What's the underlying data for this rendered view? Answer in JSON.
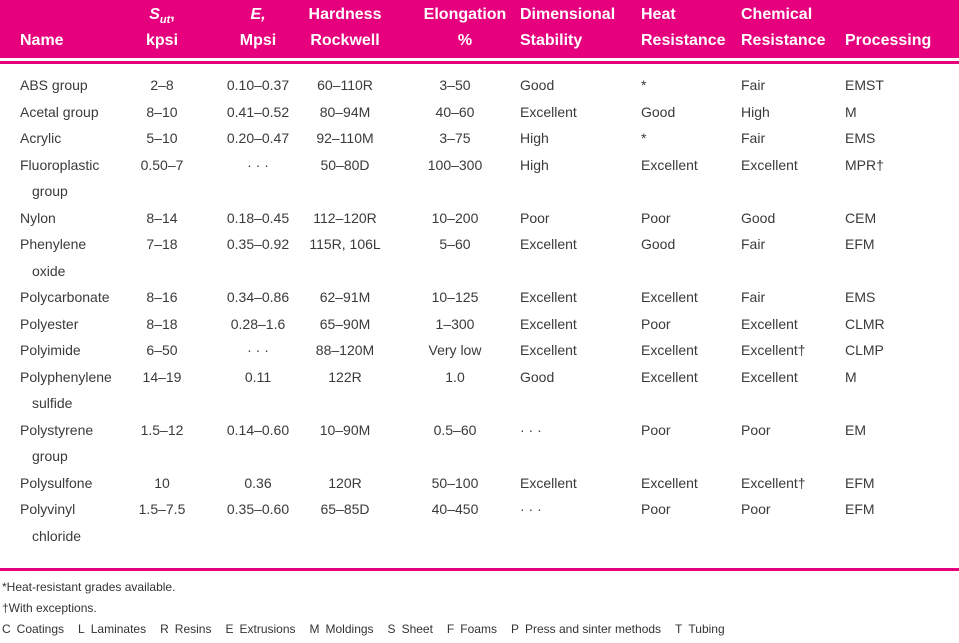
{
  "table": {
    "columns": [
      {
        "line1": "",
        "line2": "Name"
      },
      {
        "line1": "S",
        "line1_sub": "ut",
        "line1_end": ",",
        "line2": "kpsi"
      },
      {
        "line1": "E,",
        "line2": "Mpsi"
      },
      {
        "line1": "Hardness",
        "line2": "Rockwell"
      },
      {
        "line1": "Elongation",
        "line2": "%"
      },
      {
        "line1": "Dimensional",
        "line2": "Stability"
      },
      {
        "line1": "Heat",
        "line2": "Resistance"
      },
      {
        "line1": "Chemical",
        "line2": "Resistance"
      },
      {
        "line1": "",
        "line2": "Processing"
      }
    ],
    "rows": [
      {
        "name": [
          "ABS group"
        ],
        "cells": [
          "2–8",
          "0.10–0.37",
          "60–110R",
          "3–50",
          "Good",
          "*",
          "Fair",
          "EMST"
        ]
      },
      {
        "name": [
          "Acetal group"
        ],
        "cells": [
          "8–10",
          "0.41–0.52",
          "80–94M",
          "40–60",
          "Excellent",
          "Good",
          "High",
          "M"
        ]
      },
      {
        "name": [
          "Acrylic"
        ],
        "cells": [
          "5–10",
          "0.20–0.47",
          "92–110M",
          "3–75",
          "High",
          "*",
          "Fair",
          "EMS"
        ]
      },
      {
        "name": [
          "Fluoroplastic",
          "group"
        ],
        "cells": [
          "0.50–7",
          "· · ·",
          "50–80D",
          "100–300",
          "High",
          "Excellent",
          "Excellent",
          "MPR†"
        ]
      },
      {
        "name": [
          "Nylon"
        ],
        "cells": [
          "8–14",
          "0.18–0.45",
          "112–120R",
          "10–200",
          "Poor",
          "Poor",
          "Good",
          "CEM"
        ]
      },
      {
        "name": [
          "Phenylene",
          "oxide"
        ],
        "cells": [
          "7–18",
          "0.35–0.92",
          "115R, 106L",
          "5–60",
          "Excellent",
          "Good",
          "Fair",
          "EFM"
        ]
      },
      {
        "name": [
          "Polycarbonate"
        ],
        "cells": [
          "8–16",
          "0.34–0.86",
          "62–91M",
          "10–125",
          "Excellent",
          "Excellent",
          "Fair",
          "EMS"
        ]
      },
      {
        "name": [
          "Polyester"
        ],
        "cells": [
          "8–18",
          "0.28–1.6",
          "65–90M",
          "1–300",
          "Excellent",
          "Poor",
          "Excellent",
          "CLMR"
        ]
      },
      {
        "name": [
          "Polyimide"
        ],
        "cells": [
          "6–50",
          "· · ·",
          "88–120M",
          "Very low",
          "Excellent",
          "Excellent",
          "Excellent†",
          "CLMP"
        ]
      },
      {
        "name": [
          "Polyphenylene",
          "sulfide"
        ],
        "cells": [
          "14–19",
          "0.11",
          "122R",
          "1.0",
          "Good",
          "Excellent",
          "Excellent",
          "M"
        ]
      },
      {
        "name": [
          "Polystyrene",
          "group"
        ],
        "cells": [
          "1.5–12",
          "0.14–0.60",
          "10–90M",
          "0.5–60",
          "· · ·",
          "Poor",
          "Poor",
          "EM"
        ]
      },
      {
        "name": [
          "Polysulfone"
        ],
        "cells": [
          "10",
          "0.36",
          "120R",
          "50–100",
          "Excellent",
          "Excellent",
          "Excellent†",
          "EFM"
        ]
      },
      {
        "name": [
          "Polyvinyl",
          "chloride"
        ],
        "cells": [
          "1.5–7.5",
          "0.35–0.60",
          "65–85D",
          "40–450",
          "· · ·",
          "Poor",
          "Poor",
          "EFM"
        ]
      }
    ]
  },
  "footnotes": [
    "*Heat-resistant grades available.",
    "†With exceptions."
  ],
  "legend": [
    {
      "code": "C",
      "meaning": "Coatings"
    },
    {
      "code": "L",
      "meaning": "Laminates"
    },
    {
      "code": "R",
      "meaning": "Resins"
    },
    {
      "code": "E",
      "meaning": "Extrusions"
    },
    {
      "code": "M",
      "meaning": "Moldings"
    },
    {
      "code": "S",
      "meaning": "Sheet"
    },
    {
      "code": "F",
      "meaning": "Foams"
    },
    {
      "code": "P",
      "meaning": "Press and sinter methods"
    },
    {
      "code": "T",
      "meaning": "Tubing"
    }
  ]
}
